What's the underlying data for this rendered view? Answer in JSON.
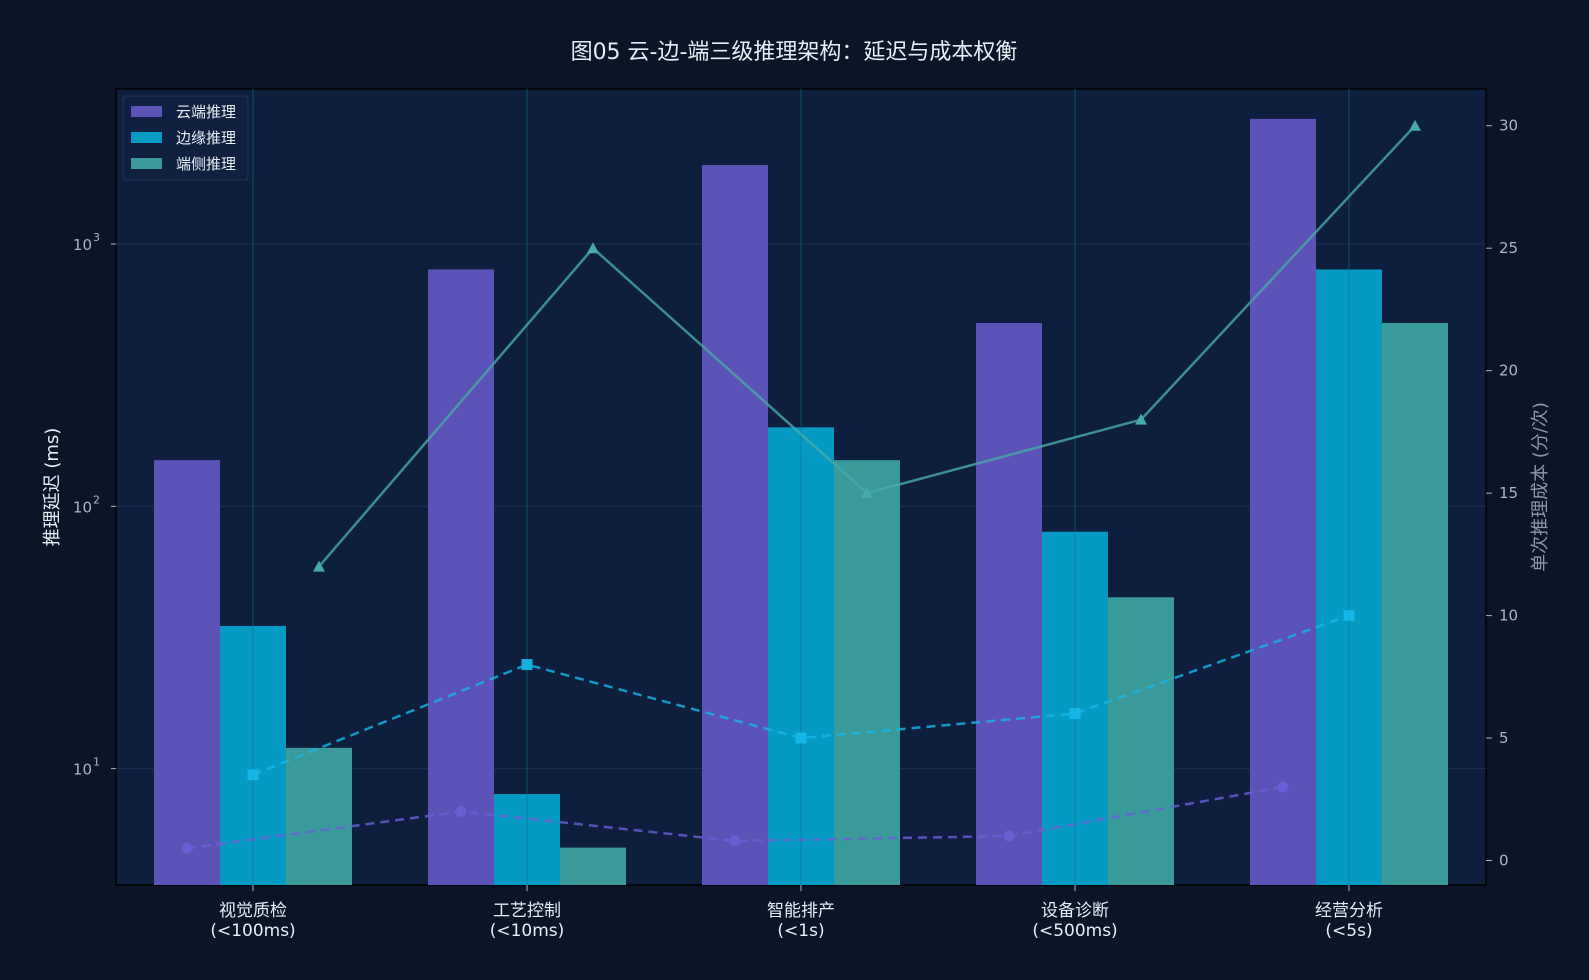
{
  "chart_data": {
    "type": "bar",
    "title": "图05 云-边-端三级推理架构：延迟与成本权衡",
    "categories": [
      [
        "视觉质检",
        "(<100ms)"
      ],
      [
        "工艺控制",
        "(<10ms)"
      ],
      [
        "智能排产",
        "(<1s)"
      ],
      [
        "设备诊断",
        "(<500ms)"
      ],
      [
        "经营分析",
        "(<5s)"
      ]
    ],
    "ylabel": "推理延迟 (ms)",
    "y2label": "单次推理成本 (分/次)",
    "yscale": "log",
    "ylim": [
      3.6,
      3900
    ],
    "y2lim": [
      -1,
      31.5
    ],
    "yticks": [
      {
        "value": 10,
        "label": "10"
      },
      {
        "value": 100,
        "label": "10"
      },
      {
        "value": 1000,
        "label": "10"
      }
    ],
    "ytick_exponents": [
      "1",
      "2",
      "3"
    ],
    "y2ticks": [
      0,
      5,
      10,
      15,
      20,
      25,
      30
    ],
    "grid": true,
    "legend_position": "top-left",
    "series": [
      {
        "name": "云端推理",
        "color": "#5b53b8",
        "values": [
          150,
          800,
          2000,
          500,
          3000
        ]
      },
      {
        "name": "边缘推理",
        "color": "#049ac4",
        "values": [
          35,
          8,
          200,
          80,
          800
        ]
      },
      {
        "name": "端侧推理",
        "color": "#3a9a9a",
        "values": [
          12,
          5,
          150,
          45,
          500
        ]
      }
    ],
    "cost_series": [
      {
        "color": "#6a5fd6",
        "marker": "circle",
        "dash": true,
        "values": [
          0.5,
          2,
          0.8,
          1,
          3
        ]
      },
      {
        "color": "#16b6e8",
        "marker": "square",
        "dash": true,
        "values": [
          3.5,
          8,
          5,
          6,
          10
        ]
      },
      {
        "color": "#47aaa8",
        "marker": "triangle",
        "dash": false,
        "values": [
          12,
          25,
          15,
          18,
          30
        ]
      }
    ]
  }
}
